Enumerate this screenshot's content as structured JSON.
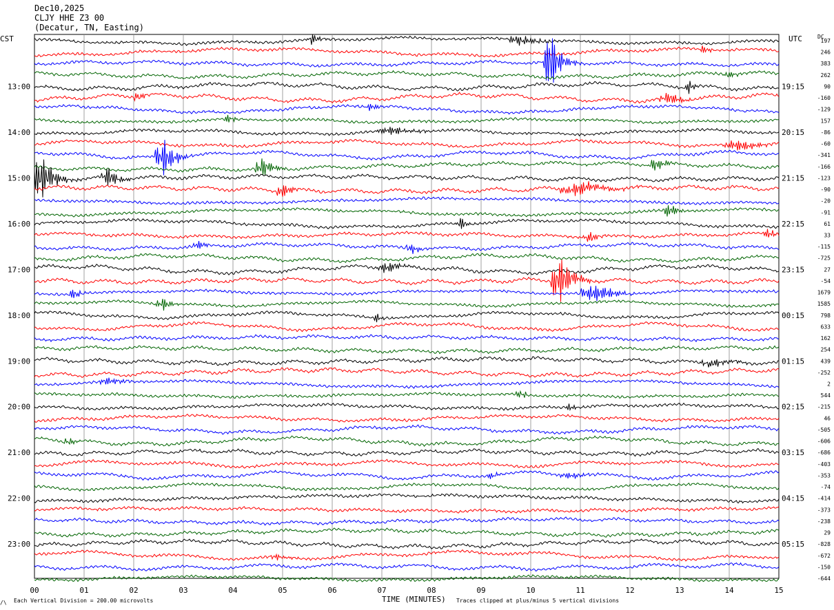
{
  "header": {
    "date": "Dec10,2025",
    "station": "CLJY HHE Z3 00",
    "location": "(Decatur, TN, Easting)"
  },
  "left_zone": "CST",
  "right_zone": "UTC",
  "dc_label": "DC",
  "footer": {
    "scale": "Each Vertical Division =  200.00 microvolts",
    "clip": "Traces clipped at plus/minus 5 vertical divisions",
    "corner": "/\\"
  },
  "chart_data": {
    "type": "line",
    "xlabel": "TIME (MINUTES)",
    "x_ticks": [
      "00",
      "01",
      "02",
      "03",
      "04",
      "05",
      "06",
      "07",
      "08",
      "09",
      "10",
      "11",
      "12",
      "13",
      "14",
      "15"
    ],
    "xlim": [
      0,
      15
    ],
    "grid": "vertical lines every minute",
    "trace_colors": [
      "#000000",
      "#ff0000",
      "#0000ff",
      "#006400"
    ],
    "trace_interval_minutes": 15,
    "traces_count": 48,
    "left_hour_labels": [
      "13:00",
      "14:00",
      "15:00",
      "16:00",
      "17:00",
      "18:00",
      "19:00",
      "20:00",
      "21:00",
      "22:00",
      "23:00"
    ],
    "right_hour_labels": [
      "19:15",
      "20:15",
      "21:15",
      "22:15",
      "23:15",
      "00:15",
      "01:15",
      "02:15",
      "03:15",
      "04:15",
      "05:15"
    ],
    "hour_label_first_trace_index": 4,
    "dc_offsets": [
      "197",
      "246",
      "383",
      "262",
      "90",
      "-160",
      "-129",
      "157",
      "-86",
      "-60",
      "-341",
      "-166",
      "-123",
      "-90",
      "-20",
      "-91",
      "61",
      "33",
      "-115",
      "-725",
      "27",
      "-54",
      "1679",
      "1585",
      "798",
      "633",
      "162",
      "254",
      "439",
      "-252",
      "2",
      "544",
      "-215",
      "46",
      "-505",
      "-606",
      "-686",
      "-403",
      "-353",
      "-74",
      "-414",
      "-373",
      "-238",
      "29",
      "-828",
      "-672",
      "-150",
      "-644"
    ],
    "events": [
      {
        "trace": 0,
        "minute": 5.6,
        "amp": 10,
        "dur": 0.12
      },
      {
        "trace": 0,
        "minute": 9.8,
        "amp": 9,
        "dur": 0.25
      },
      {
        "trace": 1,
        "minute": 13.5,
        "amp": 7,
        "dur": 0.1
      },
      {
        "trace": 2,
        "minute": 10.4,
        "amp": 60,
        "dur": 0.15
      },
      {
        "trace": 3,
        "minute": 14.0,
        "amp": 6,
        "dur": 0.1
      },
      {
        "trace": 4,
        "minute": 13.2,
        "amp": 12,
        "dur": 0.08
      },
      {
        "trace": 5,
        "minute": 2.1,
        "amp": 9,
        "dur": 0.08
      },
      {
        "trace": 5,
        "minute": 12.8,
        "amp": 10,
        "dur": 0.2
      },
      {
        "trace": 6,
        "minute": 6.8,
        "amp": 8,
        "dur": 0.1
      },
      {
        "trace": 7,
        "minute": 3.9,
        "amp": 8,
        "dur": 0.1
      },
      {
        "trace": 8,
        "minute": 7.2,
        "amp": 8,
        "dur": 0.3
      },
      {
        "trace": 9,
        "minute": 14.2,
        "amp": 10,
        "dur": 0.3
      },
      {
        "trace": 10,
        "minute": 2.6,
        "amp": 32,
        "dur": 0.18
      },
      {
        "trace": 11,
        "minute": 4.6,
        "amp": 18,
        "dur": 0.15
      },
      {
        "trace": 11,
        "minute": 12.5,
        "amp": 12,
        "dur": 0.15
      },
      {
        "trace": 12,
        "minute": 0.15,
        "amp": 40,
        "dur": 0.2
      },
      {
        "trace": 12,
        "minute": 1.5,
        "amp": 20,
        "dur": 0.15
      },
      {
        "trace": 13,
        "minute": 5.0,
        "amp": 15,
        "dur": 0.12
      },
      {
        "trace": 13,
        "minute": 11.0,
        "amp": 12,
        "dur": 0.4
      },
      {
        "trace": 15,
        "minute": 12.8,
        "amp": 14,
        "dur": 0.12
      },
      {
        "trace": 16,
        "minute": 8.6,
        "amp": 10,
        "dur": 0.1
      },
      {
        "trace": 17,
        "minute": 11.2,
        "amp": 9,
        "dur": 0.15
      },
      {
        "trace": 17,
        "minute": 14.8,
        "amp": 10,
        "dur": 0.1
      },
      {
        "trace": 18,
        "minute": 3.3,
        "amp": 10,
        "dur": 0.1
      },
      {
        "trace": 18,
        "minute": 7.6,
        "amp": 9,
        "dur": 0.12
      },
      {
        "trace": 20,
        "minute": 7.1,
        "amp": 10,
        "dur": 0.2
      },
      {
        "trace": 21,
        "minute": 10.6,
        "amp": 40,
        "dur": 0.2
      },
      {
        "trace": 22,
        "minute": 0.8,
        "amp": 10,
        "dur": 0.1
      },
      {
        "trace": 22,
        "minute": 11.3,
        "amp": 16,
        "dur": 0.3
      },
      {
        "trace": 23,
        "minute": 2.6,
        "amp": 10,
        "dur": 0.15
      },
      {
        "trace": 24,
        "minute": 6.9,
        "amp": 7,
        "dur": 0.1
      },
      {
        "trace": 28,
        "minute": 13.7,
        "amp": 7,
        "dur": 0.3
      },
      {
        "trace": 30,
        "minute": 1.5,
        "amp": 6,
        "dur": 0.2
      },
      {
        "trace": 31,
        "minute": 9.8,
        "amp": 7,
        "dur": 0.1
      },
      {
        "trace": 32,
        "minute": 10.8,
        "amp": 7,
        "dur": 0.08
      },
      {
        "trace": 35,
        "minute": 0.7,
        "amp": 7,
        "dur": 0.1
      },
      {
        "trace": 38,
        "minute": 9.2,
        "amp": 7,
        "dur": 0.1
      },
      {
        "trace": 38,
        "minute": 10.8,
        "amp": 6,
        "dur": 0.2
      },
      {
        "trace": 45,
        "minute": 4.9,
        "amp": 5,
        "dur": 0.15
      }
    ]
  }
}
